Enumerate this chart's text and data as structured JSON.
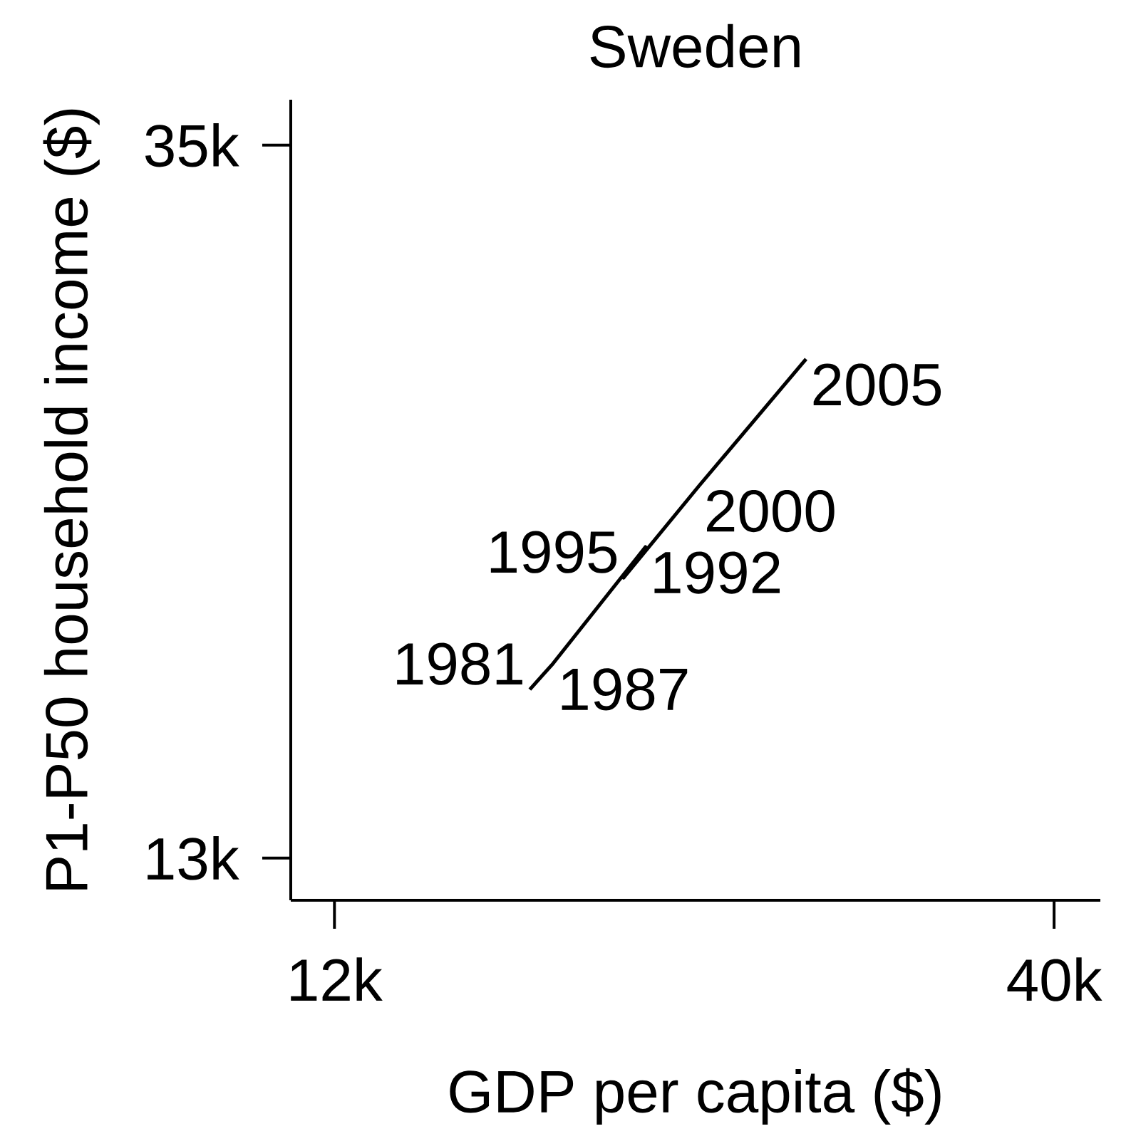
{
  "chart_data": {
    "type": "line",
    "title": "Sweden",
    "xlabel": "GDP per capita ($)",
    "ylabel": "P1-P50 household income ($)",
    "x": [
      19.6,
      20.5,
      24.1,
      23.25,
      26.2,
      30.35
    ],
    "series": [
      {
        "color": "#000000",
        "values": [
          18.2,
          19.0,
          22.6,
          21.65,
          24.5,
          28.4
        ]
      }
    ],
    "marker": "none",
    "line_style": "solid",
    "xlim": [
      10.3,
      41.8
    ],
    "ylim": [
      11.7,
      36.4
    ],
    "xticks": [
      {
        "value": 12,
        "label": "12k"
      },
      {
        "value": 40,
        "label": "40k"
      }
    ],
    "yticks": [
      {
        "value": 13,
        "label": "13k"
      },
      {
        "value": 35,
        "label": "35k"
      }
    ],
    "annotations": [
      {
        "text": "1981",
        "x": 19.6,
        "y": 18.2
      },
      {
        "text": "1987",
        "x": 20.5,
        "y": 19.0
      },
      {
        "text": "1992",
        "x": 24.1,
        "y": 22.6
      },
      {
        "text": "1995",
        "x": 23.25,
        "y": 21.65
      },
      {
        "text": "2000",
        "x": 26.2,
        "y": 24.5
      },
      {
        "text": "2005",
        "x": 30.35,
        "y": 28.4
      }
    ]
  }
}
